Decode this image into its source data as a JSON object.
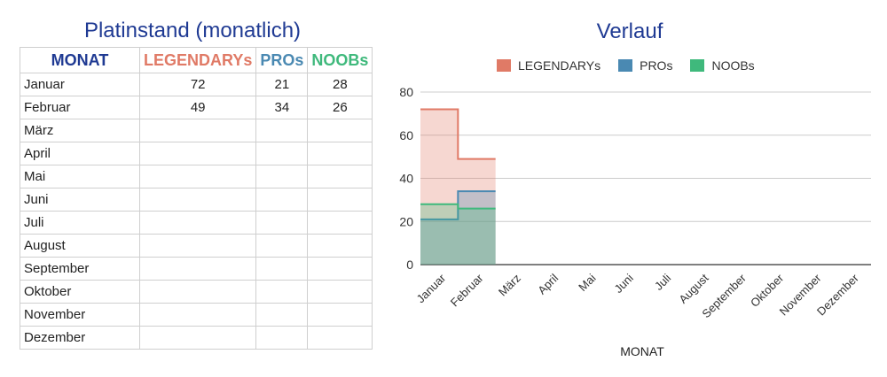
{
  "table": {
    "title": "Platinstand (monatlich)",
    "headers": [
      "MONAT",
      "LEGENDARYs",
      "PROs",
      "NOOBs"
    ],
    "header_colors": [
      "#1f3a93",
      "#e07a66",
      "#4a89b2",
      "#3fb97c"
    ],
    "rows": [
      [
        "Januar",
        "72",
        "21",
        "28"
      ],
      [
        "Februar",
        "49",
        "34",
        "26"
      ],
      [
        "März",
        "",
        "",
        ""
      ],
      [
        "April",
        "",
        "",
        ""
      ],
      [
        "Mai",
        "",
        "",
        ""
      ],
      [
        "Juni",
        "",
        "",
        ""
      ],
      [
        "Juli",
        "",
        "",
        ""
      ],
      [
        "August",
        "",
        "",
        ""
      ],
      [
        "September",
        "",
        "",
        ""
      ],
      [
        "Oktober",
        "",
        "",
        ""
      ],
      [
        "November",
        "",
        "",
        ""
      ],
      [
        "Dezember",
        "",
        "",
        ""
      ]
    ]
  },
  "chart_data": {
    "type": "area",
    "title": "Verlauf",
    "xlabel": "MONAT",
    "ylabel": "",
    "ylim": [
      0,
      80
    ],
    "yticks": [
      0,
      20,
      40,
      60,
      80
    ],
    "grid": true,
    "legend_position": "top",
    "categories": [
      "Januar",
      "Februar",
      "März",
      "April",
      "Mai",
      "Juni",
      "Juli",
      "August",
      "September",
      "Oktober",
      "November",
      "Dezember"
    ],
    "series": [
      {
        "name": "LEGENDARYs",
        "color": "#e07a66",
        "values": [
          72,
          49,
          null,
          null,
          null,
          null,
          null,
          null,
          null,
          null,
          null,
          null
        ]
      },
      {
        "name": "PROs",
        "color": "#4a89b2",
        "values": [
          21,
          34,
          null,
          null,
          null,
          null,
          null,
          null,
          null,
          null,
          null,
          null
        ]
      },
      {
        "name": "NOOBs",
        "color": "#3fb97c",
        "values": [
          28,
          26,
          null,
          null,
          null,
          null,
          null,
          null,
          null,
          null,
          null,
          null
        ]
      }
    ]
  }
}
